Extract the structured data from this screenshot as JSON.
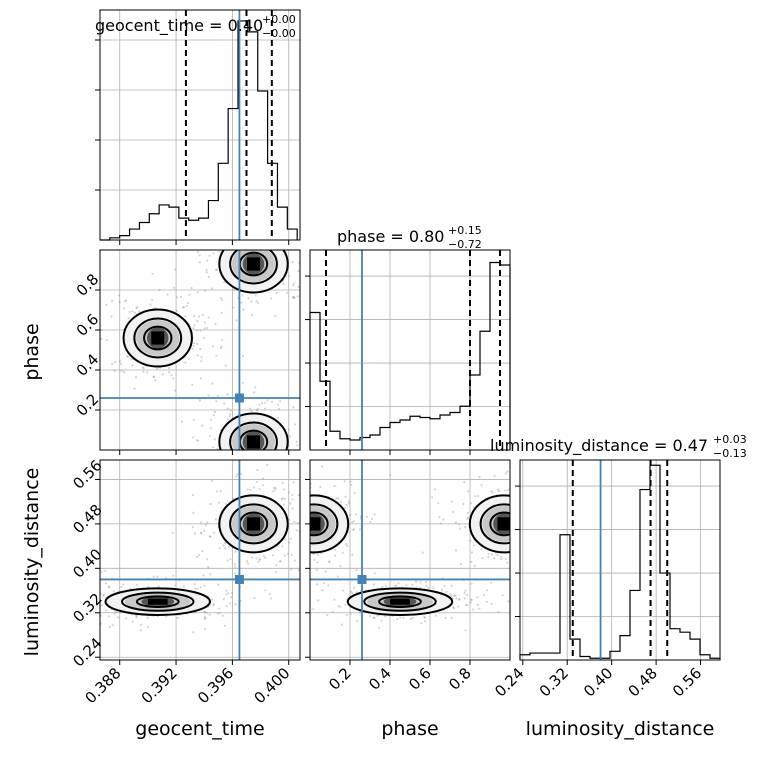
{
  "chart_data": {
    "type": "corner",
    "parameters": [
      "geocent_time",
      "phase",
      "luminosity_distance"
    ],
    "truths": {
      "geocent_time": 0.3965,
      "phase": 0.26,
      "luminosity_distance": 0.38
    },
    "ranges": {
      "geocent_time": [
        0.3866,
        0.4008
      ],
      "phase": [
        0.0,
        1.0
      ],
      "luminosity_distance": [
        0.235,
        0.595
      ]
    },
    "titles": [
      {
        "param": "geocent_time",
        "label": "geocent_time = 0.40",
        "plus": "+0.00",
        "minus": "−0.00"
      },
      {
        "param": "phase",
        "label": "phase = 0.80",
        "plus": "+0.15",
        "minus": "−0.72"
      },
      {
        "param": "luminosity_distance",
        "label": "luminosity_distance = 0.47",
        "plus": "+0.03",
        "minus": "−0.13"
      }
    ],
    "axis_labels": {
      "geocent_time": "geocent_time",
      "phase": "phase",
      "luminosity_distance": "luminosity_distance"
    },
    "ticks": {
      "geocent_time": {
        "values": [
          0.388,
          0.392,
          0.396,
          0.4
        ],
        "labels": [
          "0.388",
          "0.392",
          "0.396",
          "0.400"
        ]
      },
      "phase_x": {
        "values": [
          0.2,
          0.4,
          0.6,
          0.8
        ],
        "labels": [
          "0.2",
          "0.4",
          "0.6",
          "0.8"
        ]
      },
      "phase_y": {
        "values": [
          0.2,
          0.4,
          0.6,
          0.8
        ],
        "labels": [
          "0.2",
          "0.4",
          "0.6",
          "0.8"
        ]
      },
      "luminosity_distance": {
        "values": [
          0.24,
          0.32,
          0.4,
          0.48,
          0.56
        ],
        "labels": [
          "0.24",
          "0.32",
          "0.40",
          "0.48",
          "0.56"
        ]
      }
    },
    "histograms": {
      "geocent_time": {
        "edges": [
          0.3866,
          0.3873,
          0.388,
          0.3887,
          0.3894,
          0.3901,
          0.3908,
          0.3915,
          0.3922,
          0.3929,
          0.3936,
          0.3943,
          0.395,
          0.3957,
          0.3964,
          0.3971,
          0.3978,
          0.3985,
          0.3992,
          0.3999,
          0.4006
        ],
        "counts": [
          0,
          1,
          2,
          5,
          8,
          12,
          16,
          15,
          10,
          9,
          10,
          18,
          35,
          60,
          100,
          95,
          68,
          35,
          15,
          5
        ],
        "ymax": 105,
        "quantiles": [
          0.3927,
          0.397,
          0.3988
        ]
      },
      "phase": {
        "edges": [
          0.0,
          0.05,
          0.1,
          0.15,
          0.2,
          0.25,
          0.3,
          0.35,
          0.4,
          0.45,
          0.5,
          0.55,
          0.6,
          0.65,
          0.7,
          0.75,
          0.8,
          0.85,
          0.9,
          0.95,
          1.0
        ],
        "counts": [
          110,
          55,
          15,
          9,
          8,
          10,
          12,
          18,
          22,
          24,
          27,
          26,
          25,
          28,
          30,
          35,
          60,
          95,
          150,
          148
        ],
        "ymax": 160,
        "quantiles": [
          0.08,
          0.8,
          0.95
        ]
      },
      "luminosity_distance": {
        "edges": [
          0.235,
          0.253,
          0.271,
          0.289,
          0.307,
          0.325,
          0.343,
          0.361,
          0.379,
          0.397,
          0.415,
          0.433,
          0.451,
          0.469,
          0.487,
          0.505,
          0.523,
          0.541,
          0.559,
          0.577,
          0.595
        ],
        "counts": [
          3,
          4,
          4,
          4,
          72,
          12,
          2,
          1,
          1,
          5,
          14,
          40,
          98,
          112,
          50,
          18,
          16,
          12,
          3,
          1
        ],
        "ymax": 115,
        "quantiles": [
          0.33,
          0.47,
          0.5
        ]
      }
    },
    "contours_2d": [
      {
        "x": "geocent_time",
        "y": "phase",
        "peaks": [
          {
            "x": 0.3975,
            "y": 0.93
          },
          {
            "x": 0.3975,
            "y": 0.04
          },
          {
            "x": 0.3907,
            "y": 0.56
          }
        ],
        "levels": 3
      },
      {
        "x": "geocent_time",
        "y": "luminosity_distance",
        "peaks": [
          {
            "x": 0.3975,
            "y": 0.48
          },
          {
            "x": 0.3907,
            "y": 0.34
          }
        ],
        "levels": 3
      },
      {
        "x": "phase",
        "y": "luminosity_distance",
        "peaks": [
          {
            "x": 0.97,
            "y": 0.48
          },
          {
            "x": 0.02,
            "y": 0.48
          },
          {
            "x": 0.45,
            "y": 0.34
          }
        ],
        "levels": 3
      }
    ]
  }
}
